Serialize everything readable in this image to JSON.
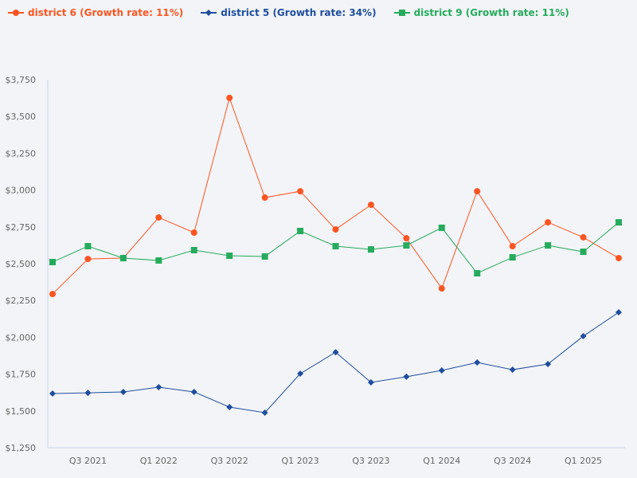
{
  "chart_data": {
    "type": "line",
    "title": "",
    "xlabel": "",
    "ylabel": "",
    "ylim": [
      1250,
      3750
    ],
    "y_ticks": [
      "$1,250",
      "$1,500",
      "$1,750",
      "$2,000",
      "$2,250",
      "$2,500",
      "$2,750",
      "$3,000",
      "$3,250",
      "$3,500",
      "$3,750"
    ],
    "y_tick_values": [
      1250,
      1500,
      1750,
      2000,
      2250,
      2500,
      2750,
      3000,
      3250,
      3500,
      3750
    ],
    "categories": [
      "Q2 2021",
      "Q3 2021",
      "Q4 2021",
      "Q1 2022",
      "Q2 2022",
      "Q3 2022",
      "Q4 2022",
      "Q1 2023",
      "Q2 2023",
      "Q3 2023",
      "Q4 2023",
      "Q1 2024",
      "Q2 2024",
      "Q3 2024",
      "Q4 2024",
      "Q1 2025",
      "Q2 2025"
    ],
    "x_tick_labels": [
      "Q3 2021",
      "Q1 2022",
      "Q3 2022",
      "Q1 2023",
      "Q3 2023",
      "Q1 2024",
      "Q3 2024",
      "Q1 2025"
    ],
    "grid": false,
    "legend_position": "top-left",
    "series": [
      {
        "name": "district 6 (Growth rate: 11%)",
        "color": "#fc5522",
        "marker": "circle",
        "values": [
          2294,
          2532,
          2538,
          2814,
          2711,
          3626,
          2949,
          2992,
          2733,
          2900,
          2673,
          2332,
          2992,
          2619,
          2781,
          2679,
          2538
        ]
      },
      {
        "name": "district 5 (Growth rate: 34%)",
        "color": "#1f4e9e",
        "marker": "diamond",
        "values": [
          1618,
          1623,
          1629,
          1661,
          1629,
          1526,
          1488,
          1753,
          1899,
          1694,
          1732,
          1775,
          1829,
          1780,
          1818,
          2008,
          2170
        ]
      },
      {
        "name": "district 9 (Growth rate: 11%)",
        "color": "#25ab5c",
        "marker": "square",
        "values": [
          2511,
          2619,
          2538,
          2522,
          2592,
          2554,
          2549,
          2722,
          2619,
          2597,
          2624,
          2744,
          2435,
          2543,
          2624,
          2581,
          2781
        ]
      }
    ]
  }
}
